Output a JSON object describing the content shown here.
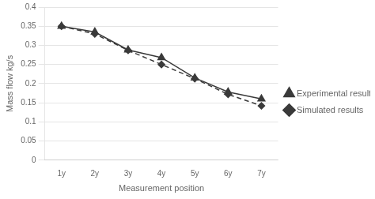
{
  "chart_data": {
    "type": "line",
    "xlabel": "Measurement position",
    "ylabel": "Mass flow kg/s",
    "categories": [
      "1y",
      "2y",
      "3y",
      "4y",
      "5y",
      "6y",
      "7y"
    ],
    "series": [
      {
        "name": "Experimental results",
        "color": "#3a3a3a",
        "marker": "triangle",
        "line_style": "solid",
        "values": [
          0.35,
          0.335,
          0.288,
          0.268,
          0.215,
          0.178,
          0.16
        ]
      },
      {
        "name": "Simulated results",
        "color": "#3a3a3a",
        "marker": "diamond",
        "line_style": "dashed",
        "values": [
          0.35,
          0.33,
          0.287,
          0.25,
          0.213,
          0.172,
          0.142
        ]
      }
    ],
    "ylim": [
      0,
      0.4
    ],
    "yticks": [
      0,
      0.05,
      0.1,
      0.15,
      0.2,
      0.25,
      0.3,
      0.35,
      0.4
    ],
    "grid": true,
    "legend": "right"
  }
}
